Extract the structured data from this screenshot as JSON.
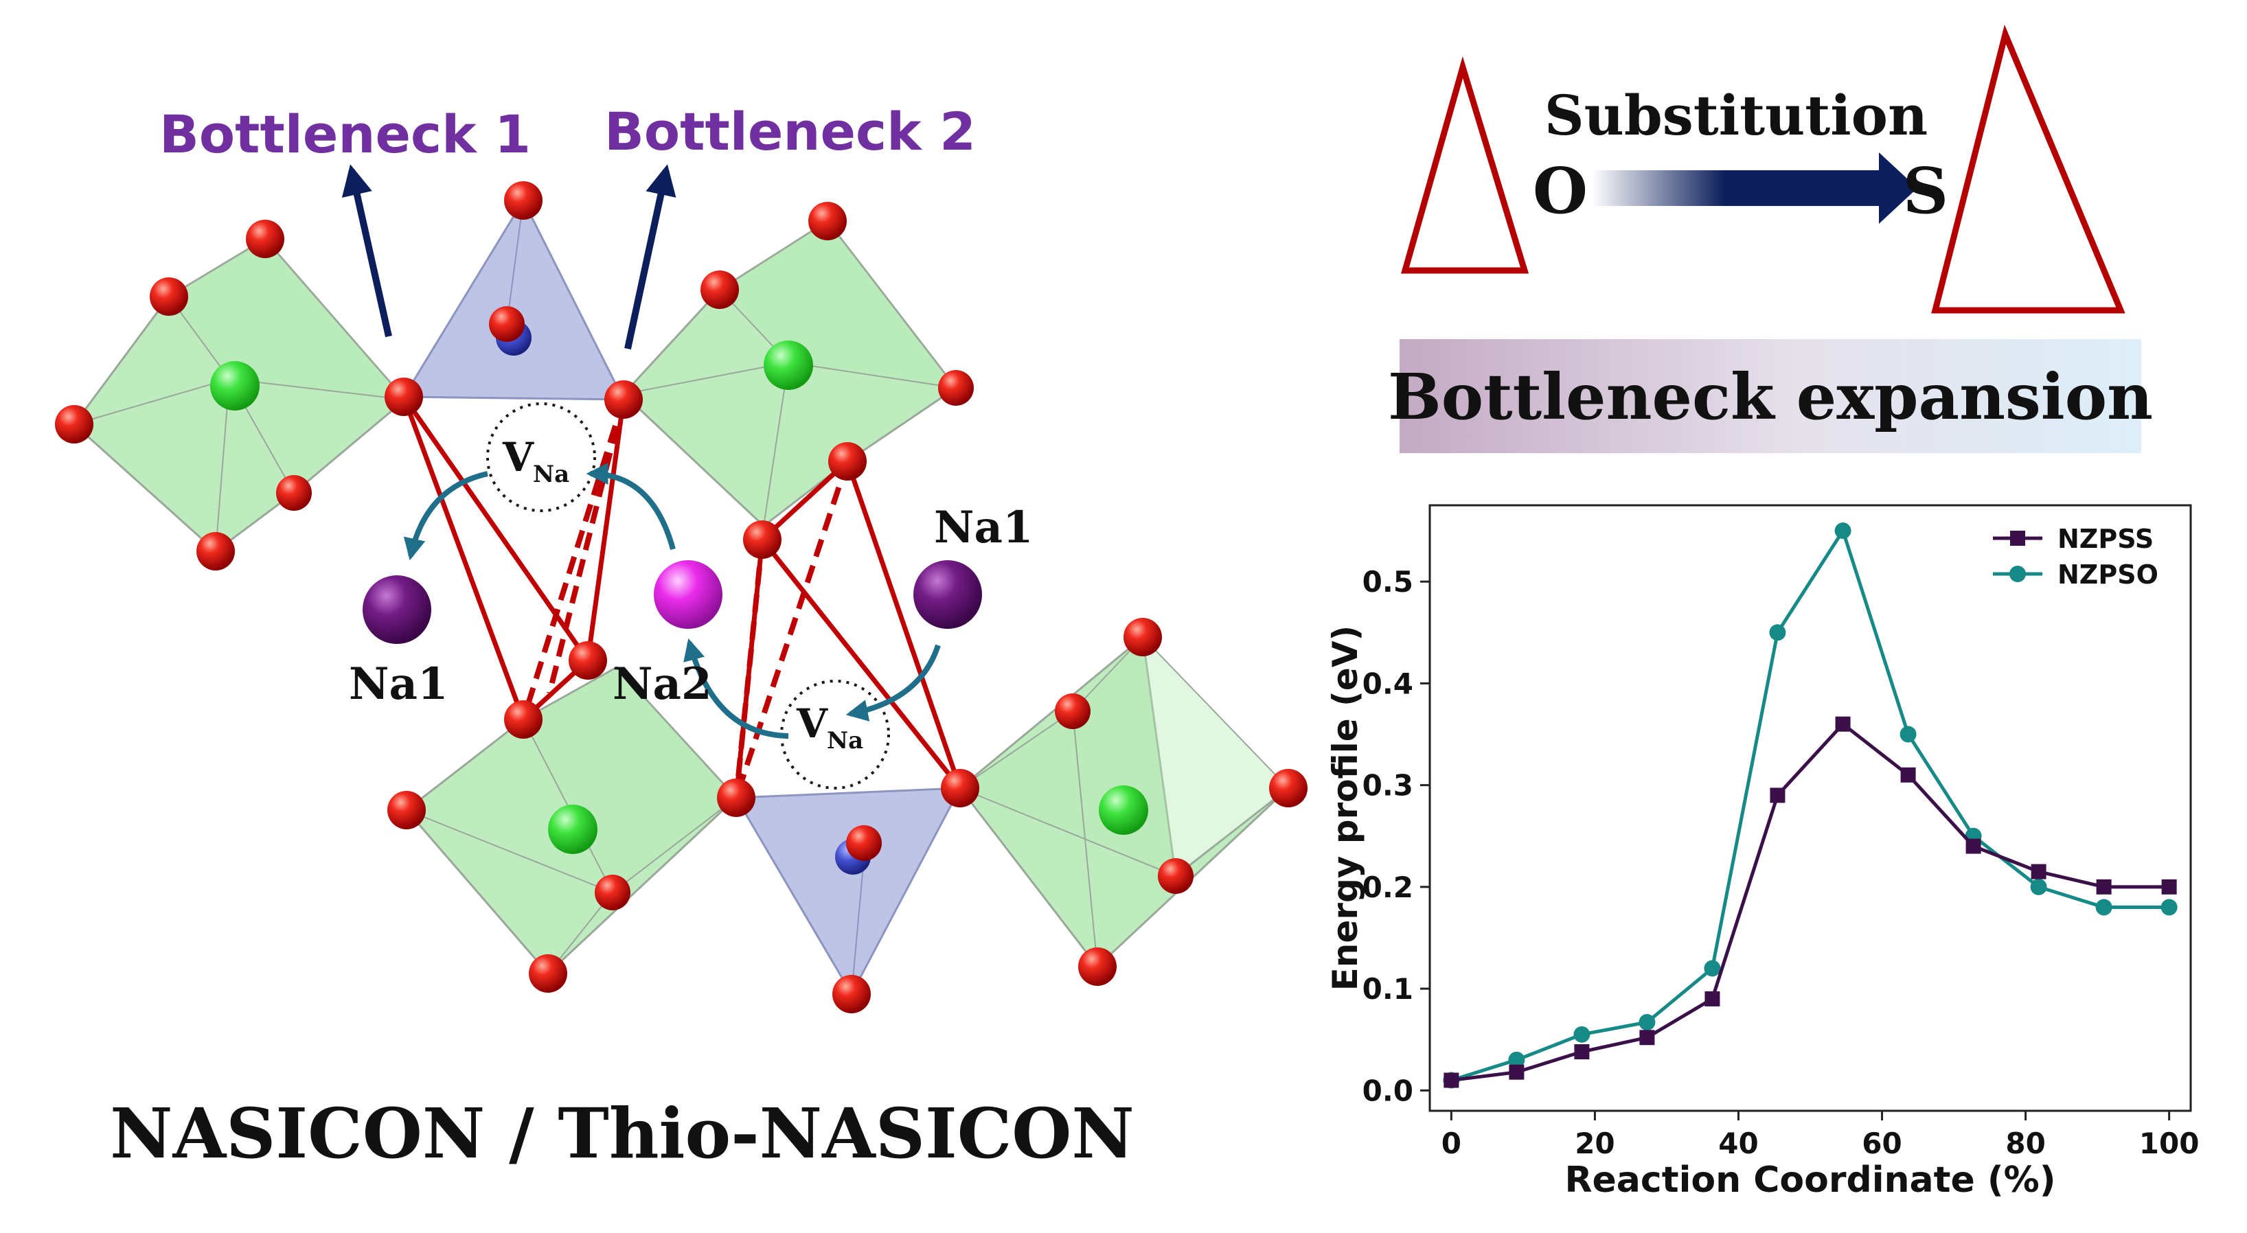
{
  "structure": {
    "bottleneck_labels": [
      "Bottleneck 1",
      "Bottleneck 2"
    ],
    "site_labels": [
      "Na1",
      "Na1",
      "Na2"
    ],
    "vacancy_main": "V",
    "vacancy_sub": "Na",
    "caption": "NASICON / Thio-NASICON"
  },
  "substitution": {
    "label": "Substitution",
    "from": "O",
    "to": "S",
    "banner": "Bottleneck expansion"
  },
  "colors": {
    "purple_label": "#7030a0",
    "oxygen": "#e8201a",
    "octahedron": "#7cd87c",
    "tetrahedron": "#9fa7d6",
    "bond": "#c00000",
    "arrow_dark": "#0c1f5c",
    "arrow_teal": "#1f6f8b",
    "na1": "#6a1a7a",
    "na2": "#e62be8",
    "nzpss": "#3b1048",
    "nzpso": "#168a87"
  },
  "chart_data": {
    "type": "line",
    "xlabel": "Reaction Coordinate (%)",
    "ylabel": "Energy profile (eV)",
    "xlim": [
      -3,
      103
    ],
    "ylim": [
      -0.02,
      0.575
    ],
    "xticks": [
      "0",
      "20",
      "40",
      "60",
      "80",
      "100"
    ],
    "yticks": [
      "0.0",
      "0.1",
      "0.2",
      "0.3",
      "0.4",
      "0.5"
    ],
    "legend_position": "top-right",
    "x": [
      0,
      9.09,
      18.18,
      27.27,
      36.36,
      45.45,
      54.55,
      63.64,
      72.73,
      81.82,
      90.91,
      100
    ],
    "series": [
      {
        "name": "NZPSS",
        "marker": "square",
        "values": [
          0.01,
          0.018,
          0.038,
          0.052,
          0.09,
          0.29,
          0.36,
          0.31,
          0.24,
          0.215,
          0.2,
          0.2
        ]
      },
      {
        "name": "NZPSO",
        "marker": "circle",
        "values": [
          0.01,
          0.03,
          0.055,
          0.067,
          0.12,
          0.45,
          0.55,
          0.35,
          0.25,
          0.2,
          0.18,
          0.18
        ]
      }
    ]
  }
}
